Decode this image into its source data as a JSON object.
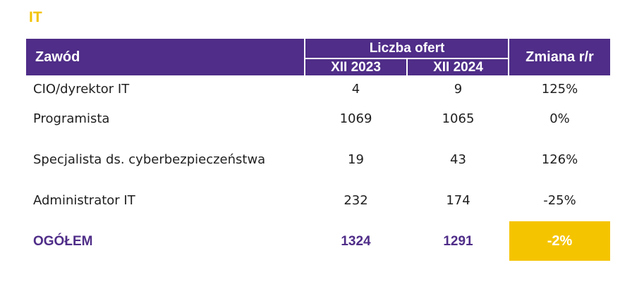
{
  "section_title": "IT",
  "header": {
    "col_profession": "Zawód",
    "col_offers_group": "Liczba ofert",
    "col_period_1": "XII 2023",
    "col_period_2": "XII 2024",
    "col_change": "Zmiana r/r"
  },
  "rows": [
    {
      "profession": "CIO/dyrektor IT",
      "v2023": "4",
      "v2024": "9",
      "change": "125%"
    },
    {
      "profession": "Programista",
      "v2023": "1069",
      "v2024": "1065",
      "change": "0%"
    },
    {
      "profession": "Specjalista ds. cyberbezpieczeństwa",
      "v2023": "19",
      "v2024": "43",
      "change": "126%"
    },
    {
      "profession": "Administrator IT",
      "v2023": "232",
      "v2024": "174",
      "change": "-25%"
    }
  ],
  "total": {
    "label": "OGÓŁEM",
    "v2023": "1324",
    "v2024": "1291",
    "change": "-2%"
  },
  "colors": {
    "header_bg": "#4f2d88",
    "accent_yellow": "#f5c400",
    "title_yellow": "#f2c200"
  }
}
